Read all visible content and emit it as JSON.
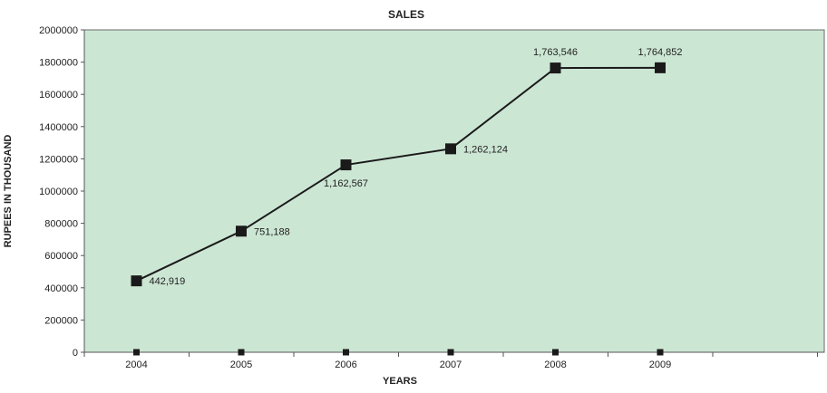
{
  "chart_data": {
    "type": "line",
    "title": "SALES",
    "xlabel": "YEARS",
    "ylabel": "RUPEES IN THOUSAND",
    "categories": [
      "2004",
      "2005",
      "2006",
      "2007",
      "2008",
      "2009"
    ],
    "series": [
      {
        "values": [
          442919,
          751188,
          1162567,
          1262124,
          1763546,
          1764852
        ],
        "labels": [
          "442,919",
          "751,188",
          "1,162,567",
          "1,262,124",
          "1,763,546",
          "1,764,852"
        ],
        "color": "#1a1a1a"
      },
      {
        "values": [
          0,
          0,
          0,
          0,
          0,
          0
        ],
        "color": "#1a1a1a"
      }
    ],
    "ylim": [
      0,
      2000000
    ],
    "yticks": [
      0,
      200000,
      400000,
      600000,
      800000,
      1000000,
      1200000,
      1400000,
      1600000,
      1800000,
      2000000
    ],
    "ytick_labels": [
      "0",
      "200000",
      "400000",
      "600000",
      "800000",
      "1000000",
      "1200000",
      "1400000",
      "1600000",
      "1800000",
      "2000000"
    ],
    "grid": false,
    "legend": "none",
    "plot_background": "#cce6d4"
  }
}
